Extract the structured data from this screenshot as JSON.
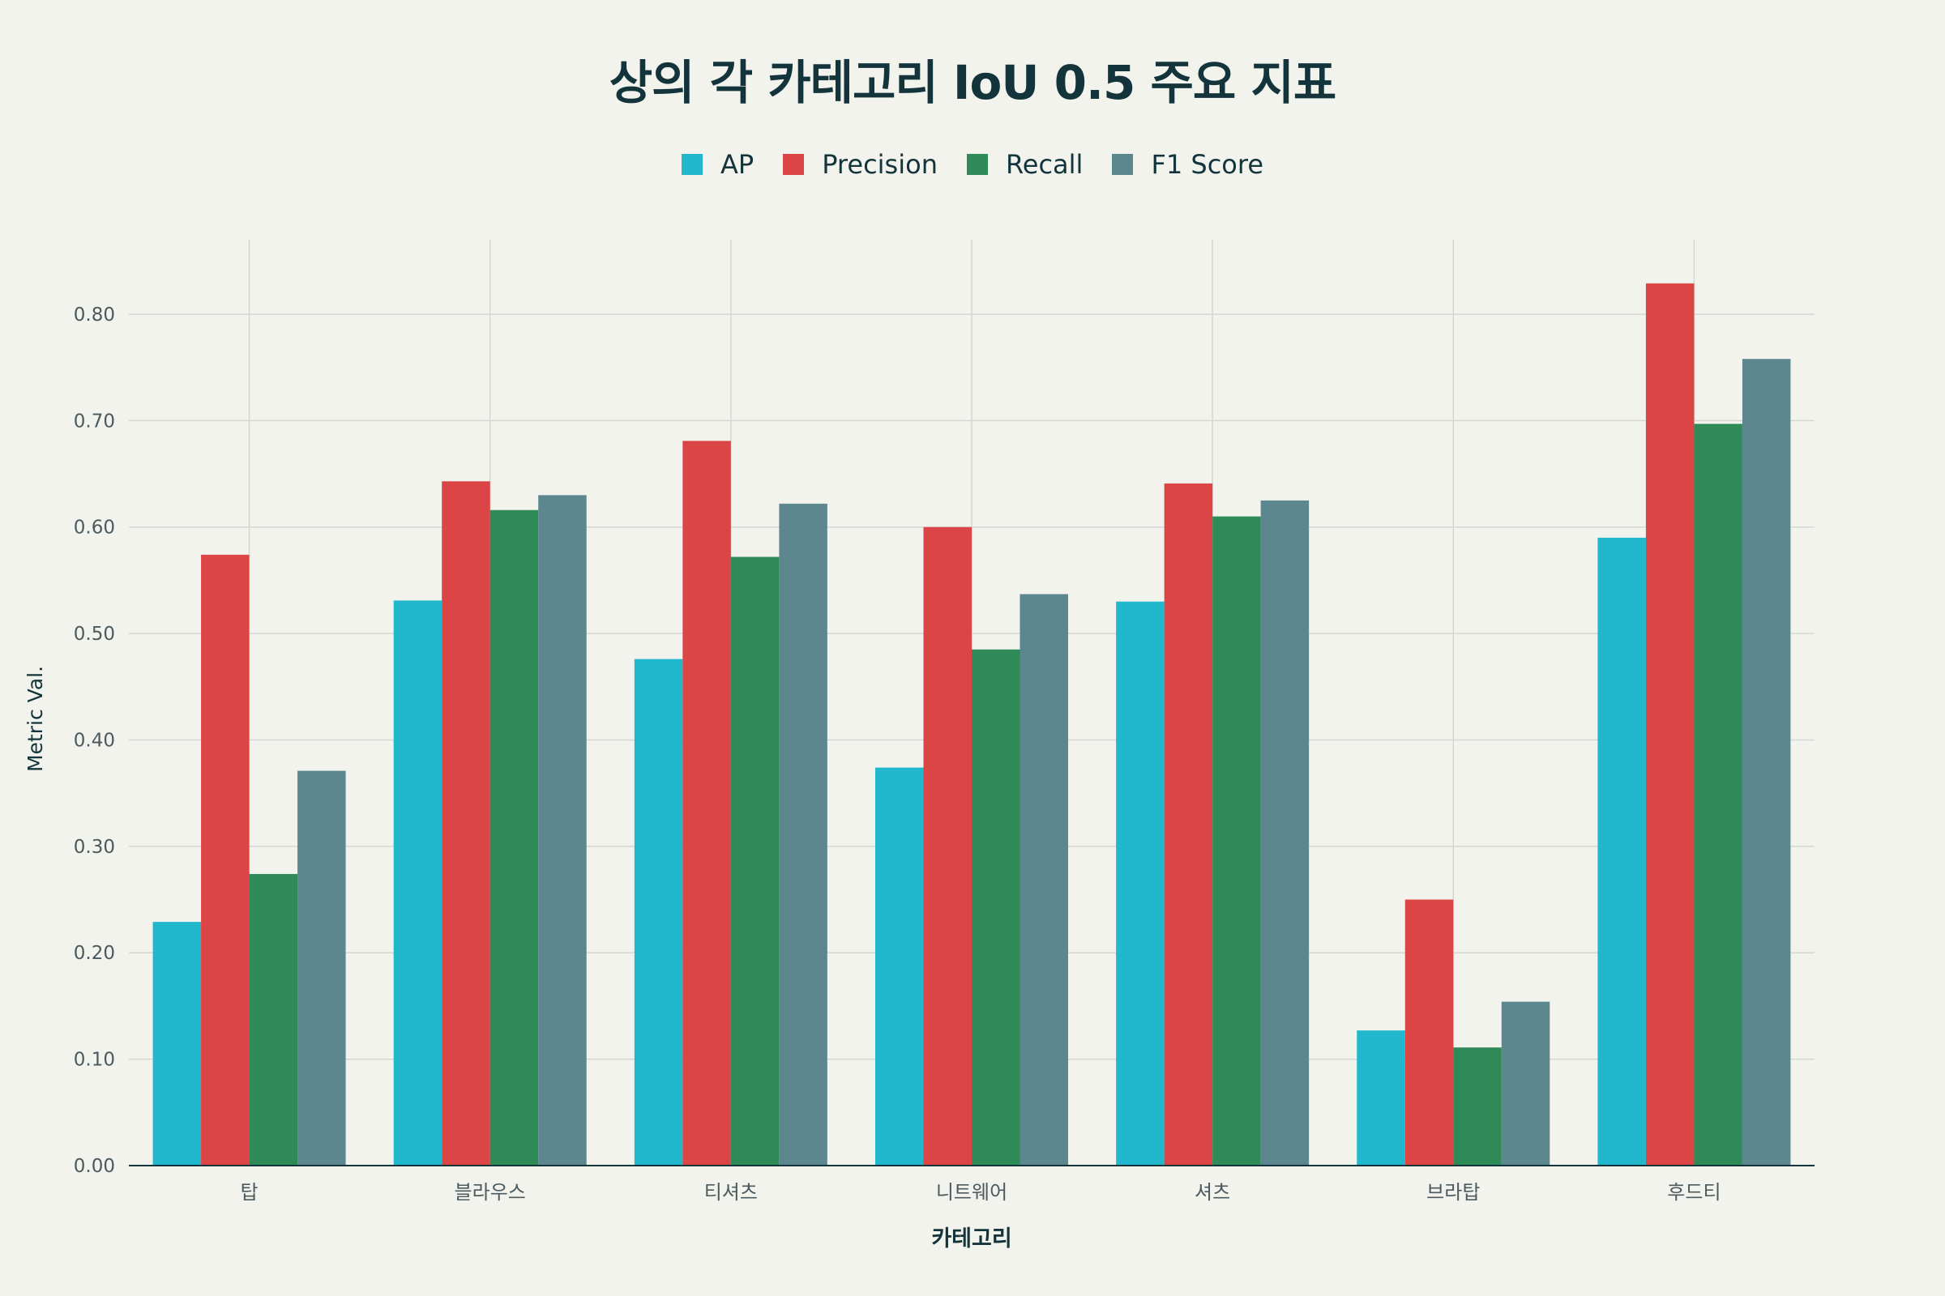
{
  "chart_data": {
    "type": "bar",
    "title": "상의 각 카테고리 IoU 0.5 주요 지표",
    "xlabel": "카테고리",
    "ylabel": "Metric Val.",
    "ylim": [
      0,
      0.87
    ],
    "yticks": [
      "0.00",
      "0.10",
      "0.20",
      "0.30",
      "0.40",
      "0.50",
      "0.60",
      "0.70",
      "0.80"
    ],
    "grid": true,
    "legend_position": "top-center",
    "categories": [
      "탑",
      "블라우스",
      "티셔츠",
      "니트웨어",
      "셔츠",
      "브라탑",
      "후드티"
    ],
    "series": [
      {
        "name": "AP",
        "color": "#21b8cd",
        "values": [
          0.229,
          0.531,
          0.476,
          0.374,
          0.53,
          0.127,
          0.59
        ]
      },
      {
        "name": "Precision",
        "color": "#db4545",
        "values": [
          0.574,
          0.643,
          0.681,
          0.6,
          0.641,
          0.25,
          0.829
        ]
      },
      {
        "name": "Recall",
        "color": "#2e8b57",
        "values": [
          0.274,
          0.616,
          0.572,
          0.485,
          0.61,
          0.111,
          0.697
        ]
      },
      {
        "name": "F1 Score",
        "color": "#5d878f",
        "values": [
          0.371,
          0.63,
          0.622,
          0.537,
          0.625,
          0.154,
          0.758
        ]
      }
    ]
  }
}
